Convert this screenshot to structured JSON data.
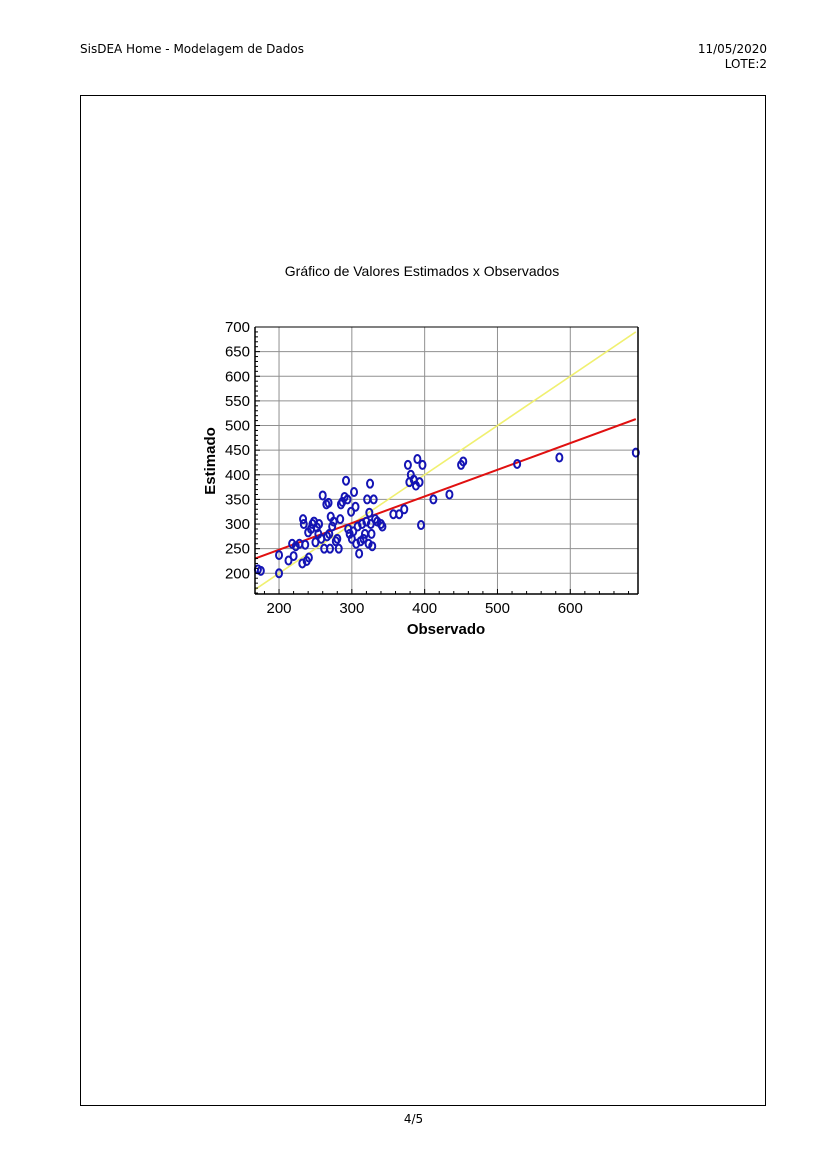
{
  "header": {
    "left_title": "SisDEA Home - Modelagem de Dados",
    "date": "11/05/2020",
    "lote": "LOTE:2"
  },
  "footer": {
    "page": "4/5"
  },
  "colors": {
    "points": "#1414b4",
    "regression_line": "#e01010",
    "identity_line": "#f0f070",
    "grid": "#909090"
  },
  "chart_data": {
    "type": "scatter",
    "title": "Gráfico de Valores Estimados x Observados",
    "xlabel": "Observado",
    "ylabel": "Estimado",
    "xlim": [
      167,
      693
    ],
    "ylim": [
      158,
      700
    ],
    "xticks": [
      200,
      300,
      400,
      500,
      600
    ],
    "yticks": [
      200,
      250,
      300,
      350,
      400,
      450,
      500,
      550,
      600,
      650,
      700
    ],
    "grid": true,
    "regression_line": [
      [
        167,
        230
      ],
      [
        690,
        513
      ]
    ],
    "identity_line": [
      [
        167,
        167
      ],
      [
        690,
        690
      ]
    ],
    "points": [
      [
        171,
        208
      ],
      [
        175,
        205
      ],
      [
        200,
        237
      ],
      [
        200,
        200
      ],
      [
        213,
        226
      ],
      [
        218,
        260
      ],
      [
        220,
        235
      ],
      [
        223,
        255
      ],
      [
        228,
        260
      ],
      [
        232,
        220
      ],
      [
        233,
        310
      ],
      [
        234,
        300
      ],
      [
        236,
        258
      ],
      [
        238,
        225
      ],
      [
        240,
        283
      ],
      [
        241,
        232
      ],
      [
        244,
        290
      ],
      [
        246,
        300
      ],
      [
        248,
        305
      ],
      [
        250,
        263
      ],
      [
        252,
        293
      ],
      [
        254,
        280
      ],
      [
        255,
        300
      ],
      [
        258,
        270
      ],
      [
        260,
        358
      ],
      [
        262,
        250
      ],
      [
        265,
        340
      ],
      [
        266,
        275
      ],
      [
        268,
        343
      ],
      [
        269,
        280
      ],
      [
        270,
        250
      ],
      [
        271,
        315
      ],
      [
        273,
        295
      ],
      [
        275,
        305
      ],
      [
        278,
        265
      ],
      [
        280,
        270
      ],
      [
        282,
        250
      ],
      [
        284,
        310
      ],
      [
        285,
        340
      ],
      [
        287,
        345
      ],
      [
        290,
        355
      ],
      [
        292,
        388
      ],
      [
        294,
        350
      ],
      [
        295,
        290
      ],
      [
        297,
        280
      ],
      [
        299,
        325
      ],
      [
        300,
        270
      ],
      [
        302,
        285
      ],
      [
        303,
        365
      ],
      [
        305,
        335
      ],
      [
        306,
        260
      ],
      [
        308,
        295
      ],
      [
        310,
        240
      ],
      [
        312,
        265
      ],
      [
        314,
        300
      ],
      [
        316,
        270
      ],
      [
        318,
        280
      ],
      [
        320,
        305
      ],
      [
        321,
        350
      ],
      [
        323,
        260
      ],
      [
        324,
        323
      ],
      [
        325,
        382
      ],
      [
        326,
        300
      ],
      [
        327,
        280
      ],
      [
        328,
        255
      ],
      [
        330,
        350
      ],
      [
        332,
        310
      ],
      [
        335,
        305
      ],
      [
        340,
        300
      ],
      [
        342,
        295
      ],
      [
        357,
        320
      ],
      [
        365,
        320
      ],
      [
        372,
        330
      ],
      [
        377,
        420
      ],
      [
        379,
        385
      ],
      [
        381,
        400
      ],
      [
        385,
        390
      ],
      [
        388,
        378
      ],
      [
        390,
        432
      ],
      [
        393,
        385
      ],
      [
        395,
        298
      ],
      [
        397,
        420
      ],
      [
        412,
        350
      ],
      [
        434,
        360
      ],
      [
        450,
        420
      ],
      [
        453,
        427
      ],
      [
        527,
        422
      ],
      [
        585,
        435
      ],
      [
        690,
        445
      ]
    ]
  }
}
